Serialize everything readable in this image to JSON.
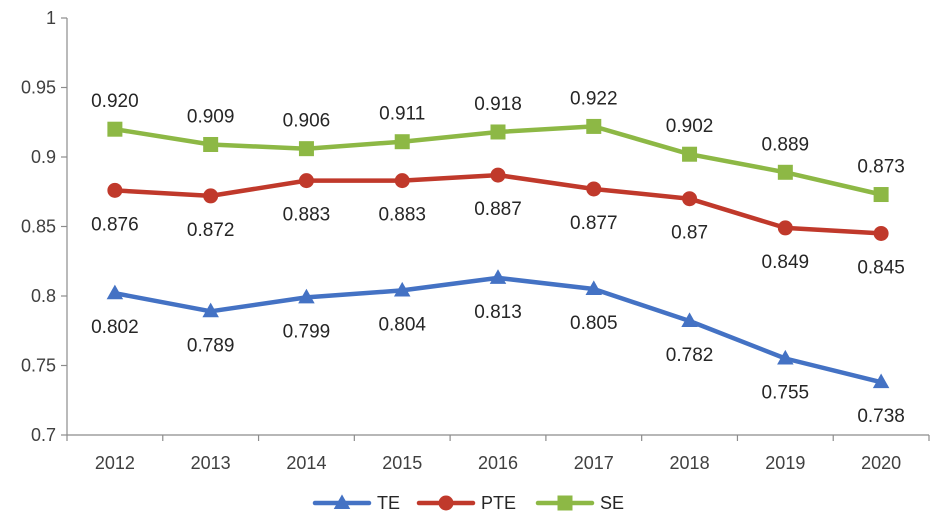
{
  "chart_data": {
    "type": "line",
    "title": "",
    "xlabel": "",
    "ylabel": "",
    "categories": [
      "2012",
      "2013",
      "2014",
      "2015",
      "2016",
      "2017",
      "2018",
      "2019",
      "2020"
    ],
    "ylim": [
      0.7,
      1
    ],
    "yticks": [
      0.7,
      0.75,
      0.8,
      0.85,
      0.9,
      0.95,
      1
    ],
    "ytick_labels": [
      "0.7",
      "0.75",
      "0.8",
      "0.85",
      "0.9",
      "0.95",
      "1"
    ],
    "grid": false,
    "legend_position": "bottom-center",
    "series": [
      {
        "name": "TE",
        "color": "#4472C4",
        "marker": "triangle",
        "values": [
          0.802,
          0.789,
          0.799,
          0.804,
          0.813,
          0.805,
          0.782,
          0.755,
          0.738
        ],
        "labels": [
          "0.802",
          "0.789",
          "0.799",
          "0.804",
          "0.813",
          "0.805",
          "0.782",
          "0.755",
          "0.738"
        ],
        "label_position": "below"
      },
      {
        "name": "PTE",
        "color": "#C0392B",
        "marker": "circle",
        "values": [
          0.876,
          0.872,
          0.883,
          0.883,
          0.887,
          0.877,
          0.87,
          0.849,
          0.845
        ],
        "labels": [
          "0.876",
          "0.872",
          "0.883",
          "0.883",
          "0.887",
          "0.877",
          "0.87",
          "0.849",
          "0.845"
        ],
        "label_position": "below"
      },
      {
        "name": "SE",
        "color": "#8DB845",
        "marker": "square",
        "values": [
          0.92,
          0.909,
          0.906,
          0.911,
          0.918,
          0.922,
          0.902,
          0.889,
          0.873
        ],
        "labels": [
          "0.920",
          "0.909",
          "0.906",
          "0.911",
          "0.918",
          "0.922",
          "0.902",
          "0.889",
          "0.873"
        ],
        "label_position": "above"
      }
    ]
  }
}
